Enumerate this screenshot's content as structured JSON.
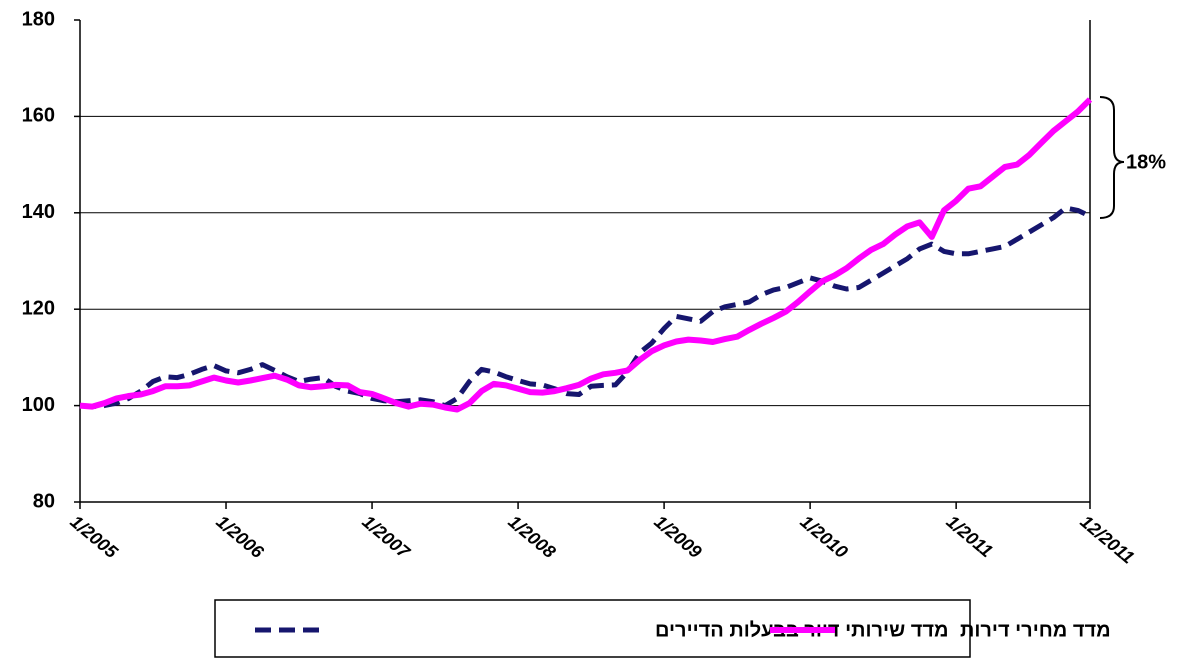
{
  "chart_data": {
    "type": "line",
    "categories": [
      "1/2005",
      null,
      null,
      null,
      null,
      null,
      null,
      null,
      null,
      null,
      null,
      null,
      "1/2006",
      null,
      null,
      null,
      null,
      null,
      null,
      null,
      null,
      null,
      null,
      null,
      "1/2007",
      null,
      null,
      null,
      null,
      null,
      null,
      null,
      null,
      null,
      null,
      null,
      "1/2008",
      null,
      null,
      null,
      null,
      null,
      null,
      null,
      null,
      null,
      null,
      null,
      "1/2009",
      null,
      null,
      null,
      null,
      null,
      null,
      null,
      null,
      null,
      null,
      null,
      "1/2010",
      null,
      null,
      null,
      null,
      null,
      null,
      null,
      null,
      null,
      null,
      null,
      "1/2011",
      null,
      null,
      null,
      null,
      null,
      null,
      null,
      null,
      null,
      null,
      "12/2011"
    ],
    "series": [
      {
        "name": "מדד שירותי דיור בבעלות הדיירים",
        "color": "#16166e",
        "dashed": true,
        "values": [
          100,
          99.8,
          100,
          100.5,
          101.5,
          103,
          105,
          106,
          105.8,
          106.5,
          107.5,
          108.3,
          107.2,
          106.8,
          107.5,
          108.5,
          107.3,
          106,
          105,
          105.5,
          105.8,
          104,
          103,
          102.5,
          101.5,
          101,
          100.8,
          101,
          101.2,
          100.8,
          100,
          101.5,
          105,
          107.5,
          107,
          106,
          105.2,
          104.5,
          104.3,
          103.5,
          102.5,
          102.3,
          104,
          104.2,
          104.3,
          107,
          111,
          113,
          116,
          118.5,
          118,
          117.5,
          119.5,
          120.5,
          121,
          121.5,
          123,
          124,
          124.5,
          125.5,
          126.5,
          125.8,
          124.8,
          124.2,
          124.5,
          126,
          127.5,
          129,
          130.5,
          132.5,
          133.5,
          132,
          131.5,
          131.5,
          132,
          132.5,
          133,
          134.5,
          136,
          137.5,
          139,
          141,
          140.5,
          139.3
        ]
      },
      {
        "name": "מדד מחירי דירות",
        "color": "#ff00ff",
        "dashed": false,
        "values": [
          100,
          99.8,
          100.5,
          101.5,
          102,
          102.3,
          103,
          104,
          104,
          104.2,
          105,
          105.8,
          105.2,
          104.8,
          105.2,
          105.7,
          106.2,
          105.4,
          104.2,
          103.8,
          104,
          104.3,
          104.2,
          102.8,
          102.4,
          101.5,
          100.5,
          99.8,
          100.4,
          100.2,
          99.6,
          99.2,
          100.5,
          103,
          104.5,
          104.2,
          103.5,
          102.8,
          102.7,
          103,
          103.6,
          104.3,
          105.6,
          106.5,
          106.8,
          107.3,
          109.5,
          111.3,
          112.5,
          113.3,
          113.7,
          113.5,
          113.2,
          113.8,
          114.3,
          115.7,
          117,
          118.2,
          119.5,
          121.5,
          123.7,
          125.8,
          127,
          128.5,
          130.5,
          132.3,
          133.5,
          135.5,
          137.2,
          138,
          135,
          140.5,
          142.5,
          145,
          145.5,
          147.5,
          149.5,
          150,
          152,
          154.5,
          157,
          159,
          161,
          163.5
        ]
      }
    ],
    "ylim": [
      80,
      180
    ],
    "yticks": [
      80,
      100,
      120,
      140,
      160,
      180
    ],
    "grid": true,
    "annotation": "18%",
    "legend": "bottom"
  }
}
